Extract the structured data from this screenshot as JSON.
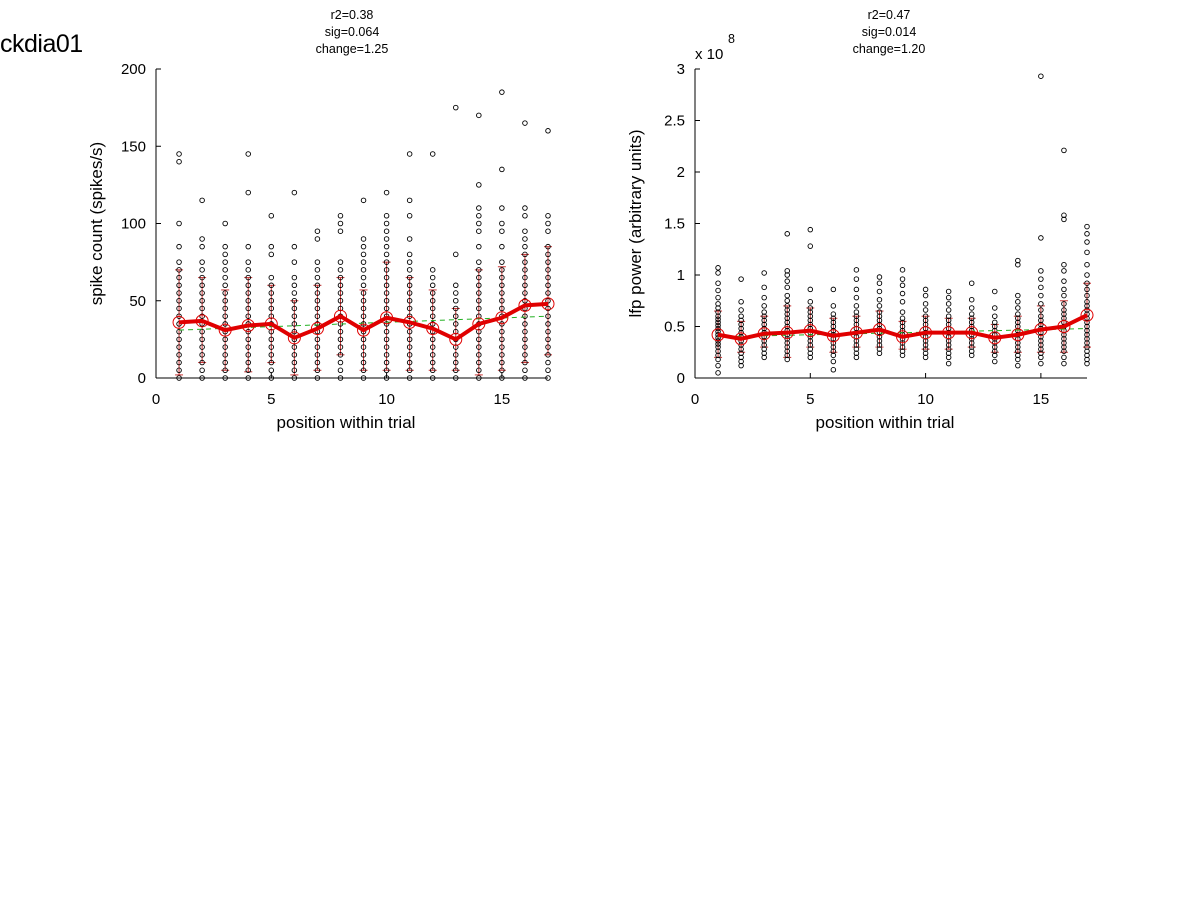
{
  "figure": {
    "label": "ckdia01"
  },
  "colors": {
    "mean_line": "#e00000",
    "error_bar": "#c83232",
    "fit_line": "#22b022",
    "points": "#000000"
  },
  "chart_data": [
    {
      "type": "scatter",
      "stats": [
        "r2=0.38",
        "sig=0.064",
        "change=1.25"
      ],
      "xlabel": "position within trial",
      "ylabel": "spike count (spikes/s)",
      "exponent_label": "",
      "xlim": [
        0,
        17
      ],
      "ylim": [
        0,
        200
      ],
      "xticks": [
        0,
        5,
        10,
        15
      ],
      "yticks": [
        0,
        50,
        100,
        150,
        200
      ],
      "x": [
        1,
        2,
        3,
        4,
        5,
        6,
        7,
        8,
        9,
        10,
        11,
        12,
        13,
        14,
        15,
        16,
        17
      ],
      "mean": [
        36,
        37,
        31,
        34,
        35,
        26,
        32,
        40,
        31,
        39,
        36,
        32,
        25,
        35,
        39,
        47,
        48
      ],
      "err_low": [
        2,
        10,
        5,
        4,
        10,
        2,
        5,
        15,
        5,
        5,
        5,
        5,
        5,
        2,
        5,
        10,
        15
      ],
      "err_high": [
        70,
        65,
        57,
        65,
        60,
        50,
        60,
        65,
        57,
        75,
        65,
        57,
        45,
        70,
        72,
        80,
        85
      ],
      "fit": [
        [
          1,
          31
        ],
        [
          17,
          40
        ]
      ],
      "points": [
        [
          0,
          5,
          10,
          15,
          20,
          25,
          30,
          35,
          40,
          45,
          50,
          55,
          60,
          65,
          70,
          75,
          85,
          100,
          140,
          145
        ],
        [
          0,
          5,
          10,
          15,
          20,
          25,
          30,
          35,
          40,
          45,
          50,
          55,
          60,
          65,
          70,
          75,
          85,
          90,
          115
        ],
        [
          0,
          5,
          10,
          15,
          20,
          25,
          30,
          35,
          40,
          45,
          50,
          55,
          60,
          65,
          70,
          75,
          80,
          85,
          100
        ],
        [
          0,
          5,
          10,
          15,
          20,
          25,
          30,
          35,
          40,
          45,
          50,
          55,
          60,
          65,
          70,
          75,
          85,
          120,
          145
        ],
        [
          0,
          5,
          10,
          15,
          20,
          25,
          30,
          35,
          40,
          45,
          50,
          55,
          60,
          65,
          80,
          85,
          105
        ],
        [
          0,
          5,
          10,
          15,
          20,
          25,
          30,
          35,
          40,
          45,
          50,
          55,
          60,
          65,
          75,
          85,
          120
        ],
        [
          0,
          5,
          10,
          15,
          20,
          25,
          30,
          35,
          40,
          45,
          50,
          55,
          60,
          65,
          70,
          75,
          90,
          95
        ],
        [
          0,
          5,
          10,
          15,
          20,
          25,
          30,
          35,
          40,
          45,
          50,
          55,
          60,
          65,
          70,
          75,
          95,
          100,
          105
        ],
        [
          0,
          5,
          10,
          15,
          20,
          25,
          30,
          35,
          40,
          45,
          50,
          55,
          60,
          65,
          70,
          75,
          80,
          85,
          90,
          115
        ],
        [
          0,
          5,
          10,
          15,
          20,
          25,
          30,
          35,
          40,
          45,
          50,
          55,
          60,
          65,
          70,
          75,
          80,
          85,
          90,
          95,
          100,
          105,
          120
        ],
        [
          0,
          5,
          10,
          15,
          20,
          25,
          30,
          35,
          40,
          45,
          50,
          55,
          60,
          65,
          70,
          75,
          80,
          90,
          105,
          115,
          145
        ],
        [
          0,
          5,
          10,
          15,
          20,
          25,
          30,
          35,
          40,
          45,
          50,
          55,
          60,
          65,
          70,
          145
        ],
        [
          0,
          5,
          10,
          15,
          20,
          25,
          30,
          35,
          40,
          45,
          50,
          55,
          60,
          80,
          175
        ],
        [
          0,
          5,
          10,
          15,
          20,
          25,
          30,
          35,
          40,
          45,
          50,
          55,
          60,
          65,
          70,
          75,
          85,
          95,
          100,
          105,
          110,
          125,
          170
        ],
        [
          0,
          5,
          10,
          15,
          20,
          25,
          30,
          35,
          40,
          45,
          50,
          55,
          60,
          65,
          70,
          75,
          85,
          95,
          100,
          110,
          135,
          185
        ],
        [
          0,
          5,
          10,
          15,
          20,
          25,
          30,
          35,
          40,
          45,
          50,
          55,
          60,
          65,
          70,
          75,
          80,
          85,
          90,
          95,
          105,
          110,
          165
        ],
        [
          0,
          5,
          10,
          15,
          20,
          25,
          30,
          35,
          40,
          45,
          50,
          55,
          60,
          65,
          70,
          75,
          80,
          85,
          95,
          100,
          105,
          160
        ]
      ]
    },
    {
      "type": "scatter",
      "stats": [
        "r2=0.47",
        "sig=0.014",
        "change=1.20"
      ],
      "xlabel": "position within trial",
      "ylabel": "lfp power (arbitrary units)",
      "exponent_label": "x 10",
      "exponent_power": "8",
      "xlim": [
        0,
        17
      ],
      "ylim": [
        0,
        3
      ],
      "xticks": [
        0,
        5,
        10,
        15
      ],
      "yticks": [
        0,
        0.5,
        1,
        1.5,
        2,
        2.5,
        3
      ],
      "x": [
        1,
        2,
        3,
        4,
        5,
        6,
        7,
        8,
        9,
        10,
        11,
        12,
        13,
        14,
        15,
        16,
        17
      ],
      "mean": [
        0.42,
        0.38,
        0.43,
        0.44,
        0.46,
        0.41,
        0.44,
        0.47,
        0.4,
        0.44,
        0.44,
        0.44,
        0.39,
        0.42,
        0.47,
        0.5,
        0.61
      ],
      "err_low": [
        0.2,
        0.25,
        0.3,
        0.2,
        0.3,
        0.25,
        0.3,
        0.3,
        0.28,
        0.28,
        0.28,
        0.3,
        0.25,
        0.25,
        0.25,
        0.25,
        0.3
      ],
      "err_high": [
        0.65,
        0.55,
        0.6,
        0.7,
        0.68,
        0.58,
        0.6,
        0.65,
        0.55,
        0.6,
        0.58,
        0.58,
        0.52,
        0.6,
        0.7,
        0.75,
        0.92
      ],
      "fit": [
        [
          1,
          0.4
        ],
        [
          17,
          0.48
        ]
      ],
      "points": [
        [
          0.05,
          0.12,
          0.18,
          0.22,
          0.26,
          0.3,
          0.33,
          0.36,
          0.39,
          0.42,
          0.45,
          0.48,
          0.51,
          0.54,
          0.57,
          0.6,
          0.64,
          0.68,
          0.72,
          0.78,
          0.85,
          0.92,
          1.02,
          1.07
        ],
        [
          0.12,
          0.16,
          0.2,
          0.24,
          0.28,
          0.32,
          0.36,
          0.4,
          0.44,
          0.48,
          0.52,
          0.56,
          0.6,
          0.66,
          0.74,
          0.96
        ],
        [
          0.2,
          0.24,
          0.28,
          0.32,
          0.36,
          0.4,
          0.44,
          0.48,
          0.52,
          0.56,
          0.6,
          0.64,
          0.7,
          0.78,
          0.88,
          1.02
        ],
        [
          0.18,
          0.22,
          0.26,
          0.3,
          0.34,
          0.38,
          0.42,
          0.46,
          0.5,
          0.54,
          0.58,
          0.62,
          0.66,
          0.7,
          0.75,
          0.8,
          0.88,
          0.94,
          1.0,
          1.04,
          1.4
        ],
        [
          0.2,
          0.24,
          0.28,
          0.32,
          0.36,
          0.4,
          0.44,
          0.48,
          0.52,
          0.56,
          0.6,
          0.64,
          0.68,
          0.74,
          0.86,
          1.28,
          1.44
        ],
        [
          0.08,
          0.16,
          0.22,
          0.26,
          0.3,
          0.34,
          0.38,
          0.42,
          0.46,
          0.5,
          0.54,
          0.58,
          0.62,
          0.7,
          0.86
        ],
        [
          0.2,
          0.24,
          0.28,
          0.32,
          0.36,
          0.4,
          0.44,
          0.48,
          0.52,
          0.56,
          0.6,
          0.64,
          0.7,
          0.78,
          0.86,
          0.96,
          1.05
        ],
        [
          0.24,
          0.28,
          0.32,
          0.36,
          0.4,
          0.44,
          0.48,
          0.52,
          0.56,
          0.6,
          0.64,
          0.7,
          0.76,
          0.84,
          0.92,
          0.98
        ],
        [
          0.22,
          0.26,
          0.3,
          0.34,
          0.38,
          0.42,
          0.46,
          0.5,
          0.54,
          0.58,
          0.64,
          0.74,
          0.82,
          0.9,
          0.96,
          1.05
        ],
        [
          0.2,
          0.24,
          0.28,
          0.32,
          0.36,
          0.4,
          0.44,
          0.48,
          0.52,
          0.56,
          0.6,
          0.66,
          0.72,
          0.8,
          0.86
        ],
        [
          0.14,
          0.2,
          0.24,
          0.28,
          0.32,
          0.36,
          0.4,
          0.44,
          0.48,
          0.52,
          0.56,
          0.6,
          0.66,
          0.72,
          0.78,
          0.84
        ],
        [
          0.22,
          0.26,
          0.3,
          0.34,
          0.38,
          0.42,
          0.46,
          0.5,
          0.54,
          0.58,
          0.62,
          0.68,
          0.76,
          0.92
        ],
        [
          0.16,
          0.22,
          0.26,
          0.3,
          0.34,
          0.38,
          0.42,
          0.46,
          0.5,
          0.54,
          0.6,
          0.68,
          0.84
        ],
        [
          0.12,
          0.18,
          0.22,
          0.26,
          0.3,
          0.34,
          0.38,
          0.42,
          0.46,
          0.5,
          0.54,
          0.58,
          0.62,
          0.68,
          0.74,
          0.8,
          1.1,
          1.14
        ],
        [
          0.14,
          0.2,
          0.24,
          0.28,
          0.32,
          0.36,
          0.4,
          0.44,
          0.48,
          0.52,
          0.56,
          0.6,
          0.66,
          0.72,
          0.8,
          0.88,
          0.96,
          1.04,
          1.36,
          2.93
        ],
        [
          0.14,
          0.2,
          0.26,
          0.3,
          0.34,
          0.38,
          0.42,
          0.46,
          0.5,
          0.54,
          0.58,
          0.62,
          0.66,
          0.72,
          0.8,
          0.86,
          0.94,
          1.04,
          1.1,
          1.54,
          1.58,
          2.21
        ],
        [
          0.14,
          0.18,
          0.22,
          0.26,
          0.3,
          0.34,
          0.38,
          0.42,
          0.46,
          0.5,
          0.54,
          0.58,
          0.62,
          0.66,
          0.7,
          0.74,
          0.8,
          0.86,
          0.92,
          1.0,
          1.1,
          1.22,
          1.32,
          1.4,
          1.47
        ]
      ]
    }
  ]
}
